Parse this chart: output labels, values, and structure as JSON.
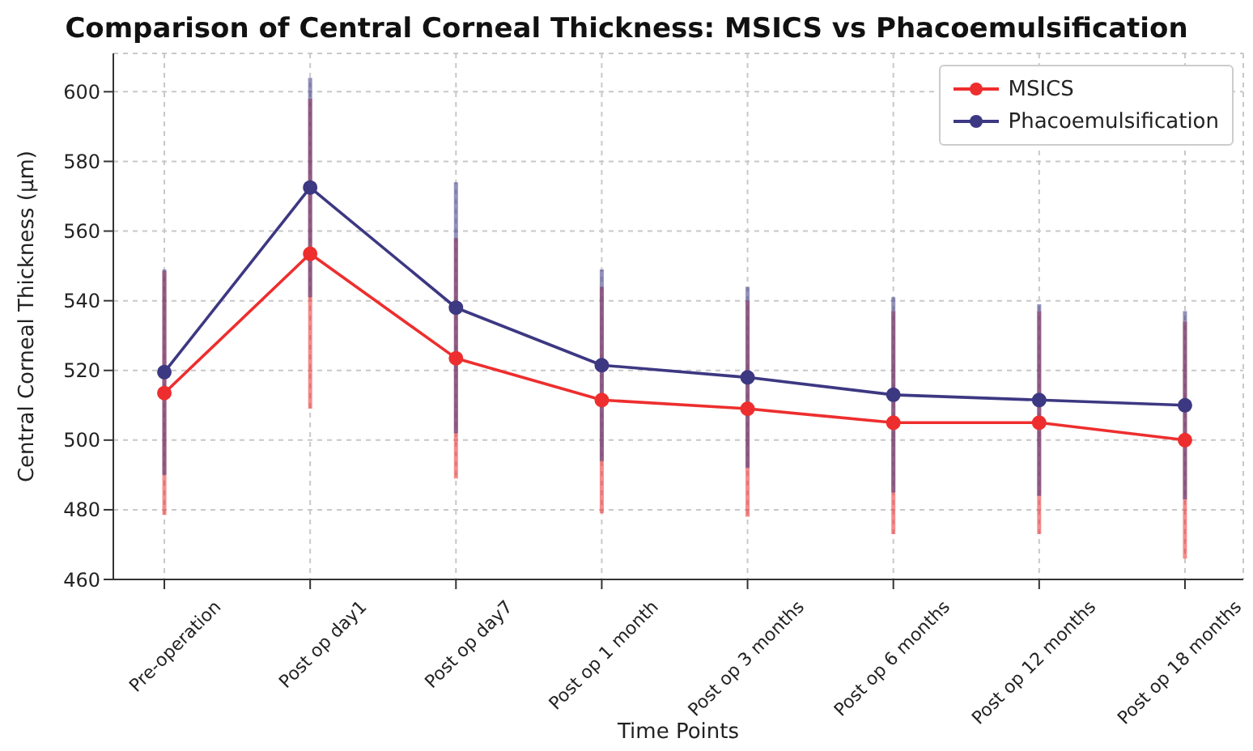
{
  "chart_data": {
    "type": "line",
    "title": "Comparison of Central Corneal Thickness: MSICS vs Phacoemulsification",
    "xlabel": "Time Points",
    "ylabel": "Central Corneal Thickness (µm)",
    "categories": [
      "Pre-operation",
      "Post op day1",
      "Post op day7",
      "Post op 1 month",
      "Post op 3 months",
      "Post op 6 months",
      "Post op 12 months",
      "Post op 18 months"
    ],
    "series": [
      {
        "name": "MSICS",
        "color": "#ee2e2e",
        "values": [
          513.5,
          553.5,
          523.5,
          511.5,
          509,
          505,
          505,
          500
        ],
        "errors": [
          35,
          44.5,
          34.5,
          32.5,
          31,
          32,
          32,
          34
        ]
      },
      {
        "name": "Phacoemulsification",
        "color": "#3d3882",
        "values": [
          519.5,
          572.5,
          538,
          521.5,
          518,
          513,
          511.5,
          510
        ],
        "errors": [
          29.5,
          31.5,
          36,
          27.5,
          26,
          28,
          27.5,
          27
        ]
      }
    ],
    "ylim": [
      460,
      611
    ],
    "yticks": [
      460,
      480,
      500,
      520,
      540,
      560,
      580,
      600
    ],
    "grid": true,
    "legend": "top right",
    "marker": "circle",
    "line_style": "solid"
  }
}
